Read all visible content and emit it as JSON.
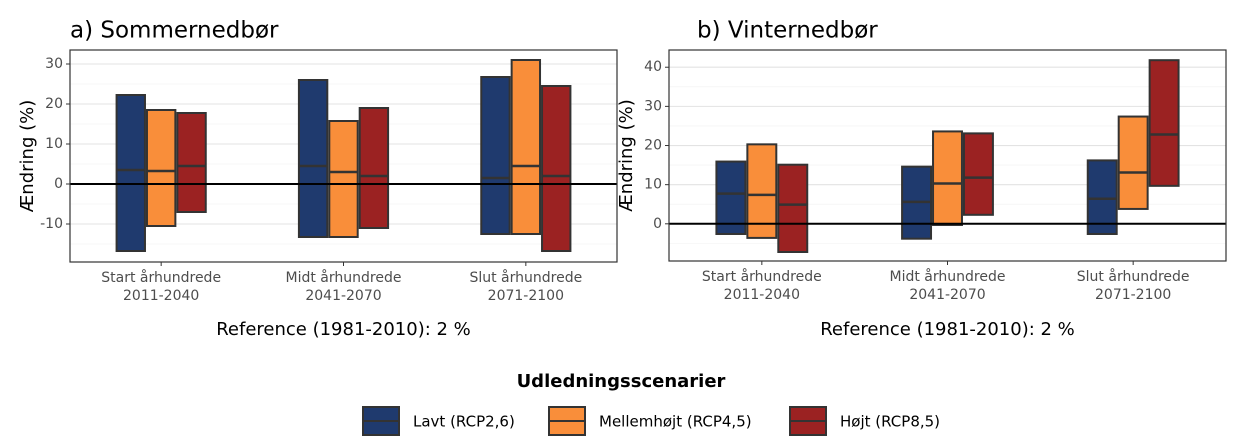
{
  "chart_data": [
    {
      "type": "crossbar",
      "title": "a) Sommernedbør",
      "xlabel": "Reference (1981-2010): 2 %",
      "ylabel": "Ændring (%)",
      "categories": [
        [
          "Start århundrede",
          "2011-2040"
        ],
        [
          "Midt århundrede",
          "2041-2070"
        ],
        [
          "Slut århundrede",
          "2071-2100"
        ]
      ],
      "series": [
        {
          "name": "Lavt (RCP2,6)",
          "color": "#1f3a6e",
          "min": [
            -16.75,
            -13.25,
            -12.5
          ],
          "median": [
            3.5,
            4.5,
            1.5
          ],
          "max": [
            22.25,
            26,
            26.75
          ]
        },
        {
          "name": "Mellemhøjt (RCP4,5)",
          "color": "#f98e3a",
          "min": [
            -10.5,
            -13.25,
            -12.5
          ],
          "median": [
            3.25,
            3,
            4.5
          ],
          "max": [
            18.5,
            15.75,
            31
          ]
        },
        {
          "name": "Højt (RCP8,5)",
          "color": "#9b2222",
          "min": [
            -7,
            -11,
            -16.75
          ],
          "median": [
            4.5,
            2,
            2
          ],
          "max": [
            17.75,
            19,
            24.5
          ]
        }
      ],
      "ylim": [
        -19.5,
        33.5
      ],
      "yticks": [
        -10,
        0,
        10,
        20,
        30
      ],
      "minor_yticks": [
        -15,
        -5,
        5,
        15,
        25
      ],
      "hline": 0,
      "grid": true
    },
    {
      "type": "crossbar",
      "title": "b) Vinternedbør",
      "xlabel": "Reference (1981-2010): 2 %",
      "ylabel": "Ændring (%)",
      "categories": [
        [
          "Start århundrede",
          "2011-2040"
        ],
        [
          "Midt århundrede",
          "2041-2070"
        ],
        [
          "Slut århundrede",
          "2071-2100"
        ]
      ],
      "series": [
        {
          "name": "Lavt (RCP2,6)",
          "color": "#1f3a6e",
          "min": [
            -2.6,
            -3.8,
            -2.6
          ],
          "median": [
            7.7,
            5.6,
            6.4
          ],
          "max": [
            15.9,
            14.6,
            16.2
          ]
        },
        {
          "name": "Mellemhøjt (RCP4,5)",
          "color": "#f98e3a",
          "min": [
            -3.6,
            -0.3,
            3.8
          ],
          "median": [
            7.4,
            10.3,
            13.1
          ],
          "max": [
            20.3,
            23.6,
            27.4
          ]
        },
        {
          "name": "Højt (RCP8,5)",
          "color": "#9b2222",
          "min": [
            -7.2,
            2.3,
            9.7
          ],
          "median": [
            4.9,
            11.8,
            22.8
          ],
          "max": [
            15.1,
            23.1,
            41.8
          ]
        }
      ],
      "ylim": [
        -9.5,
        44.4
      ],
      "yticks": [
        0,
        10,
        20,
        30,
        40
      ],
      "minor_yticks": [
        -5,
        5,
        15,
        25,
        35
      ],
      "hline": 0,
      "grid": true
    }
  ],
  "legend_title": "Udledningsscenarier"
}
